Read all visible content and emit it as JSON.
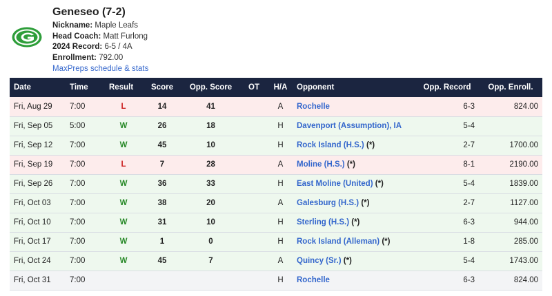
{
  "team": {
    "title": "Geneseo (7-2)",
    "nickname_label": "Nickname:",
    "nickname": "Maple Leafs",
    "coach_label": "Head Coach:",
    "coach": "Matt Furlong",
    "record_label": "2024 Record:",
    "record": "6-5 / 4A",
    "enrollment_label": "Enrollment:",
    "enrollment": "792.00",
    "link_text": "MaxPreps schedule & stats",
    "logo_icon": "green-g-logo-icon",
    "logo_color": "#2e9e3a"
  },
  "colors": {
    "header_bg": "#1b2540",
    "win": "#2a8a2a",
    "loss": "#cc2222",
    "link": "#3366cc"
  },
  "columns": [
    "Date",
    "Time",
    "Result",
    "Score",
    "Opp. Score",
    "OT",
    "H/A",
    "Opponent",
    "Opp. Record",
    "Opp. Enroll."
  ],
  "games": [
    {
      "date": "Fri, Aug 29",
      "time": "7:00",
      "result": "L",
      "score": "14",
      "opp_score": "41",
      "ot": "",
      "ha": "A",
      "opponent": "Rochelle",
      "star": "",
      "opp_record": "6-3",
      "opp_enroll": "824.00"
    },
    {
      "date": "Fri, Sep 05",
      "time": "5:00",
      "result": "W",
      "score": "26",
      "opp_score": "18",
      "ot": "",
      "ha": "H",
      "opponent": "Davenport (Assumption), IA",
      "star": "",
      "opp_record": "5-4",
      "opp_enroll": ""
    },
    {
      "date": "Fri, Sep 12",
      "time": "7:00",
      "result": "W",
      "score": "45",
      "opp_score": "10",
      "ot": "",
      "ha": "H",
      "opponent": "Rock Island (H.S.)",
      "star": "(*)",
      "opp_record": "2-7",
      "opp_enroll": "1700.00"
    },
    {
      "date": "Fri, Sep 19",
      "time": "7:00",
      "result": "L",
      "score": "7",
      "opp_score": "28",
      "ot": "",
      "ha": "A",
      "opponent": "Moline (H.S.)",
      "star": "(*)",
      "opp_record": "8-1",
      "opp_enroll": "2190.00"
    },
    {
      "date": "Fri, Sep 26",
      "time": "7:00",
      "result": "W",
      "score": "36",
      "opp_score": "33",
      "ot": "",
      "ha": "H",
      "opponent": "East Moline (United)",
      "star": "(*)",
      "opp_record": "5-4",
      "opp_enroll": "1839.00"
    },
    {
      "date": "Fri, Oct 03",
      "time": "7:00",
      "result": "W",
      "score": "38",
      "opp_score": "20",
      "ot": "",
      "ha": "A",
      "opponent": "Galesburg (H.S.)",
      "star": "(*)",
      "opp_record": "2-7",
      "opp_enroll": "1127.00"
    },
    {
      "date": "Fri, Oct 10",
      "time": "7:00",
      "result": "W",
      "score": "31",
      "opp_score": "10",
      "ot": "",
      "ha": "H",
      "opponent": "Sterling (H.S.)",
      "star": "(*)",
      "opp_record": "6-3",
      "opp_enroll": "944.00"
    },
    {
      "date": "Fri, Oct 17",
      "time": "7:00",
      "result": "W",
      "score": "1",
      "opp_score": "0",
      "ot": "",
      "ha": "H",
      "opponent": "Rock Island (Alleman)",
      "star": "(*)",
      "opp_record": "1-8",
      "opp_enroll": "285.00"
    },
    {
      "date": "Fri, Oct 24",
      "time": "7:00",
      "result": "W",
      "score": "45",
      "opp_score": "7",
      "ot": "",
      "ha": "A",
      "opponent": "Quincy (Sr.)",
      "star": "(*)",
      "opp_record": "5-4",
      "opp_enroll": "1743.00"
    },
    {
      "date": "Fri, Oct 31",
      "time": "7:00",
      "result": "",
      "score": "",
      "opp_score": "",
      "ot": "",
      "ha": "H",
      "opponent": "Rochelle",
      "star": "",
      "opp_record": "6-3",
      "opp_enroll": "824.00"
    }
  ]
}
